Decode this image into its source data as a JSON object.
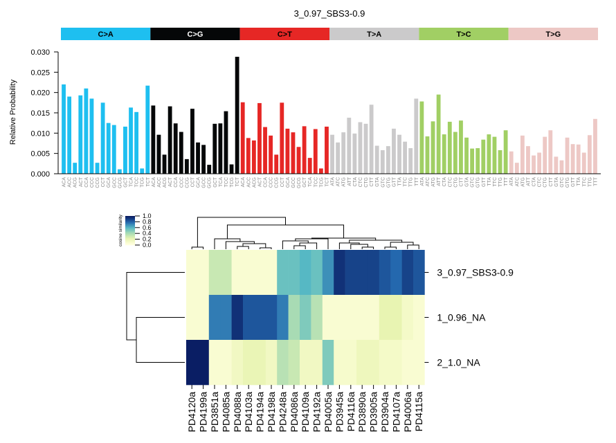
{
  "chart_data": [
    {
      "type": "bar",
      "title": "3_0.97_SBS3-0.9",
      "ylabel": "Relative Probability",
      "xlabel": "",
      "ylim": [
        0,
        0.03
      ],
      "yticks": [
        "0.000",
        "0.005",
        "0.010",
        "0.015",
        "0.020",
        "0.025",
        "0.030"
      ],
      "groups": [
        {
          "name": "C>A",
          "color": "#1EBFF0",
          "text_color": "#000000"
        },
        {
          "name": "C>G",
          "color": "#050708",
          "text_color": "#FFFFFF"
        },
        {
          "name": "C>T",
          "color": "#E62725",
          "text_color": "#000000"
        },
        {
          "name": "T>A",
          "color": "#CBCACB",
          "text_color": "#000000"
        },
        {
          "name": "T>C",
          "color": "#A1CF64",
          "text_color": "#000000"
        },
        {
          "name": "T>G",
          "color": "#EDC8C5",
          "text_color": "#000000"
        }
      ],
      "categories": [
        "ACA",
        "ACC",
        "ACG",
        "ACT",
        "CCA",
        "CCC",
        "CCG",
        "CCT",
        "GCA",
        "GCC",
        "GCG",
        "GCT",
        "TCA",
        "TCC",
        "TCG",
        "TCT",
        "ACA",
        "ACC",
        "ACG",
        "ACT",
        "CCA",
        "CCC",
        "CCG",
        "CCT",
        "GCA",
        "GCC",
        "GCG",
        "GCT",
        "TCA",
        "TCC",
        "TCG",
        "TCT",
        "ACA",
        "ACC",
        "ACG",
        "ACT",
        "CCA",
        "CCC",
        "CCG",
        "CCT",
        "GCA",
        "GCC",
        "GCG",
        "GCT",
        "TCA",
        "TCC",
        "TCG",
        "TCT",
        "ATA",
        "ATC",
        "ATG",
        "ATT",
        "CTA",
        "CTC",
        "CTG",
        "CTT",
        "GTA",
        "GTC",
        "GTG",
        "GTT",
        "TTA",
        "TTC",
        "TTG",
        "TTT",
        "ATA",
        "ATC",
        "ATG",
        "ATT",
        "CTA",
        "CTC",
        "CTG",
        "CTT",
        "GTA",
        "GTC",
        "GTG",
        "GTT",
        "TTA",
        "TTC",
        "TTG",
        "TTT",
        "ATA",
        "ATC",
        "ATG",
        "ATT",
        "CTA",
        "CTC",
        "CTG",
        "CTT",
        "GTA",
        "GTC",
        "GTG",
        "GTT",
        "TTA",
        "TTC",
        "TTG",
        "TTT"
      ],
      "values": [
        0.022,
        0.019,
        0.0027,
        0.0193,
        0.021,
        0.0185,
        0.0027,
        0.0175,
        0.0125,
        0.012,
        0.0011,
        0.0116,
        0.0163,
        0.0152,
        0.0013,
        0.0217,
        0.0168,
        0.0096,
        0.0047,
        0.0166,
        0.0124,
        0.0103,
        0.0036,
        0.016,
        0.0077,
        0.0071,
        0.0022,
        0.0123,
        0.0124,
        0.0154,
        0.0023,
        0.0288,
        0.0176,
        0.0088,
        0.0082,
        0.0174,
        0.0115,
        0.0094,
        0.0047,
        0.0175,
        0.0111,
        0.0102,
        0.0066,
        0.0117,
        0.0039,
        0.011,
        0.0013,
        0.0116,
        0.0096,
        0.0077,
        0.0102,
        0.0138,
        0.0099,
        0.0127,
        0.0123,
        0.017,
        0.0069,
        0.0058,
        0.0068,
        0.0111,
        0.0096,
        0.0079,
        0.0063,
        0.0185,
        0.0178,
        0.0092,
        0.0129,
        0.0195,
        0.0097,
        0.0128,
        0.0103,
        0.0131,
        0.0089,
        0.0062,
        0.0063,
        0.0084,
        0.0097,
        0.0091,
        0.0058,
        0.0107,
        0.0055,
        0.0027,
        0.0094,
        0.0068,
        0.0045,
        0.0052,
        0.0091,
        0.0107,
        0.0042,
        0.0033,
        0.0089,
        0.0073,
        0.0072,
        0.0052,
        0.0095,
        0.0135
      ]
    },
    {
      "type": "heatmap",
      "legend_title": "cosine similarity",
      "legend_ticks": [
        "1.0",
        "0.8",
        "0.6",
        "0.4",
        "0.2",
        "0.0"
      ],
      "rows": [
        "3_0.97_SBS3-0.9",
        "1_0.96_NA",
        "2_1.0_NA"
      ],
      "columns": [
        "PD4120a",
        "PD4199a",
        "PD3851a",
        "PD4085a",
        "PD4088a",
        "PD4103a",
        "PD4194a",
        "PD4198a",
        "PD4248a",
        "PD4086a",
        "PD4109a",
        "PD4192a",
        "PD4005a",
        "PD3945a",
        "PD4116a",
        "PD3890a",
        "PD3905a",
        "PD3904a",
        "PD4107a",
        "PD4006a",
        "PD4115a"
      ],
      "values": [
        [
          0.05,
          0.05,
          0.3,
          0.3,
          0.05,
          0.05,
          0.05,
          0.05,
          0.55,
          0.55,
          0.6,
          0.55,
          0.7,
          0.95,
          0.9,
          0.9,
          0.9,
          0.85,
          0.8,
          0.9,
          0.85
        ],
        [
          0.05,
          0.05,
          0.75,
          0.75,
          0.95,
          0.85,
          0.85,
          0.85,
          0.75,
          0.4,
          0.5,
          0.35,
          0.05,
          0.05,
          0.05,
          0.05,
          0.05,
          0.2,
          0.2,
          0.1,
          0.05
        ],
        [
          1.0,
          1.0,
          0.05,
          0.05,
          0.12,
          0.18,
          0.18,
          0.12,
          0.35,
          0.3,
          0.12,
          0.12,
          0.5,
          0.08,
          0.08,
          0.15,
          0.15,
          0.1,
          0.1,
          0.05,
          0.05
        ]
      ]
    }
  ]
}
